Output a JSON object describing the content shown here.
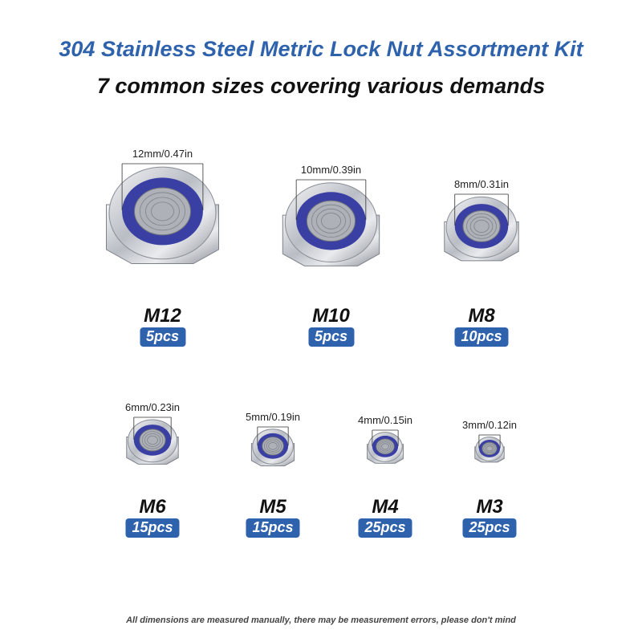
{
  "header": {
    "title": "304 Stainless Steel Metric Lock Nut Assortment Kit",
    "subtitle": "7 common sizes covering various demands"
  },
  "colors": {
    "accent": "#2f62ad",
    "nylon_insert": "#3a3fa3",
    "steel": "#c9ccd1"
  },
  "items": [
    {
      "size": "M12",
      "dimension": "12mm/0.47in",
      "qty": "5pcs"
    },
    {
      "size": "M10",
      "dimension": "10mm/0.39in",
      "qty": "5pcs"
    },
    {
      "size": "M8",
      "dimension": "8mm/0.31in",
      "qty": "10pcs"
    },
    {
      "size": "M6",
      "dimension": "6mm/0.23in",
      "qty": "15pcs"
    },
    {
      "size": "M5",
      "dimension": "5mm/0.19in",
      "qty": "15pcs"
    },
    {
      "size": "M4",
      "dimension": "4mm/0.15in",
      "qty": "25pcs"
    },
    {
      "size": "M3",
      "dimension": "3mm/0.12in",
      "qty": "25pcs"
    }
  ],
  "footer": {
    "note": "All dimensions are measured manually, there may be measurement errors, please don't mind"
  }
}
